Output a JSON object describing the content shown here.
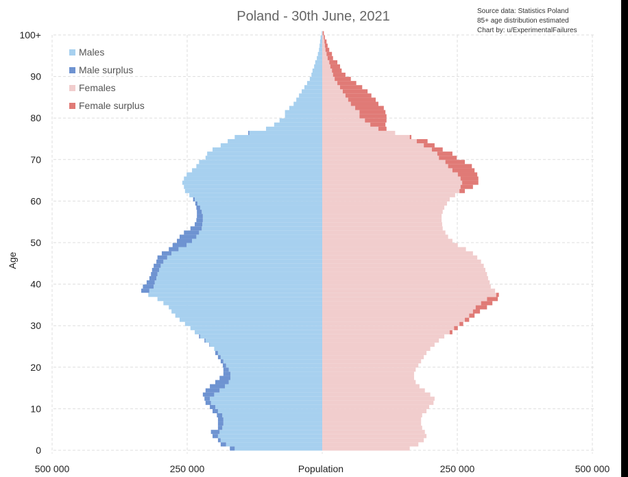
{
  "chart_data": {
    "type": "bar",
    "subtype": "population-pyramid",
    "title": "Poland - 30th June, 2021",
    "notes": [
      "Source data: Statistics Poland",
      "85+ age distribution estimated",
      "Chart by: u/ExperimentalFailures"
    ],
    "xlabel": "Population",
    "ylabel": "Age",
    "x_ticks": [
      {
        "value": -500000,
        "label": "500 000"
      },
      {
        "value": -250000,
        "label": "250 000"
      },
      {
        "value": 250000,
        "label": "250 000"
      },
      {
        "value": 500000,
        "label": "500 000"
      }
    ],
    "y_ticks": [
      {
        "value": 0,
        "label": "0"
      },
      {
        "value": 10,
        "label": "10"
      },
      {
        "value": 20,
        "label": "20"
      },
      {
        "value": 30,
        "label": "30"
      },
      {
        "value": 40,
        "label": "40"
      },
      {
        "value": 50,
        "label": "50"
      },
      {
        "value": 60,
        "label": "60"
      },
      {
        "value": 70,
        "label": "70"
      },
      {
        "value": 80,
        "label": "80"
      },
      {
        "value": 90,
        "label": "90"
      },
      {
        "value": 100,
        "label": "100+"
      }
    ],
    "xlim": [
      -500000,
      500000
    ],
    "ylim": [
      0,
      100
    ],
    "grid": true,
    "legend_position": "top-left",
    "legend": [
      {
        "label": "Males",
        "color": "#a7d0ef"
      },
      {
        "label": "Male surplus",
        "color": "#6e93d1"
      },
      {
        "label": "Females",
        "color": "#f1cdcd"
      },
      {
        "label": "Female surplus",
        "color": "#e07a76"
      }
    ],
    "value_unit": "thousands of persons",
    "ages": "0..100 (100 = 100+)",
    "males": [
      171,
      188,
      193,
      203,
      206,
      193,
      193,
      193,
      195,
      203,
      208,
      216,
      218,
      221,
      216,
      208,
      198,
      190,
      183,
      183,
      184,
      188,
      193,
      198,
      200,
      209,
      218,
      228,
      236,
      244,
      254,
      264,
      272,
      279,
      284,
      294,
      305,
      322,
      335,
      332,
      325,
      320,
      317,
      315,
      312,
      307,
      305,
      297,
      284,
      277,
      269,
      264,
      256,
      244,
      236,
      233,
      232,
      232,
      233,
      235,
      239,
      246,
      254,
      256,
      259,
      256,
      251,
      241,
      233,
      228,
      216,
      213,
      203,
      188,
      175,
      162,
      137,
      104,
      89,
      79,
      69,
      69,
      61,
      53,
      48,
      43,
      38,
      33,
      28,
      23,
      20,
      18,
      15,
      13,
      10,
      8,
      6,
      5,
      4,
      3,
      1
    ],
    "females": [
      162,
      178,
      188,
      193,
      190,
      185,
      183,
      183,
      185,
      193,
      198,
      206,
      208,
      200,
      190,
      180,
      173,
      170,
      170,
      173,
      178,
      183,
      188,
      193,
      200,
      208,
      216,
      226,
      241,
      251,
      261,
      272,
      282,
      292,
      305,
      315,
      325,
      327,
      320,
      312,
      310,
      307,
      305,
      302,
      299,
      294,
      287,
      279,
      266,
      251,
      241,
      233,
      228,
      223,
      222,
      221,
      221,
      223,
      226,
      231,
      236,
      246,
      264,
      279,
      289,
      289,
      287,
      282,
      277,
      264,
      249,
      241,
      223,
      208,
      195,
      165,
      135,
      119,
      117,
      119,
      119,
      117,
      114,
      104,
      99,
      91,
      84,
      74,
      63,
      53,
      43,
      36,
      33,
      28,
      20,
      18,
      13,
      10,
      8,
      5,
      3
    ]
  }
}
